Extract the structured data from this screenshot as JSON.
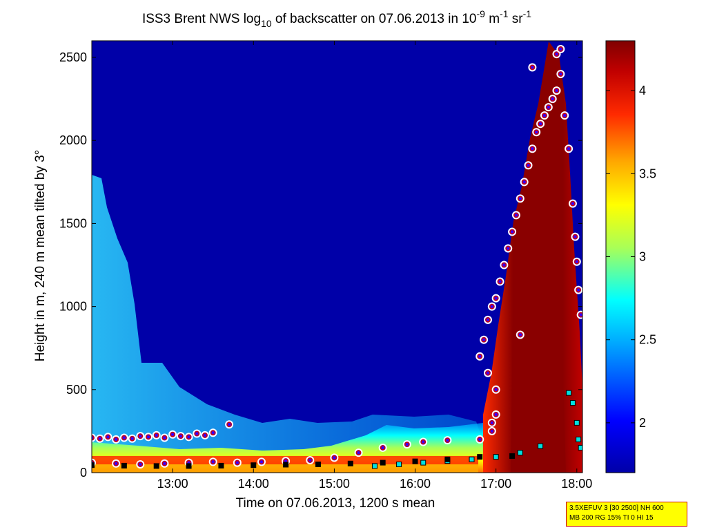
{
  "chart_data": {
    "type": "heatmap",
    "title_parts": {
      "prefix": "ISS3 Brent NWS log",
      "sub": "10",
      "middle": " of backscatter on 07.06.2013 in 10",
      "sup1": "-9",
      "unit1": " m",
      "sup2": "-1",
      "unit2": " sr",
      "sup3": "-1"
    },
    "xlabel": "Time on 07.06.2013, 1200 s mean",
    "ylabel": "Height in m, 240 m mean tilted by 3°",
    "xlim": [
      12.0,
      18.07
    ],
    "ylim": [
      0,
      2600
    ],
    "x_ticks": [
      {
        "v": 13,
        "label": "13:00"
      },
      {
        "v": 14,
        "label": "14:00"
      },
      {
        "v": 15,
        "label": "15:00"
      },
      {
        "v": 16,
        "label": "16:00"
      },
      {
        "v": 17,
        "label": "17:00"
      },
      {
        "v": 18,
        "label": "18:00"
      }
    ],
    "y_ticks": [
      {
        "v": 0,
        "label": "0"
      },
      {
        "v": 500,
        "label": "500"
      },
      {
        "v": 1000,
        "label": "1000"
      },
      {
        "v": 1500,
        "label": "1500"
      },
      {
        "v": 2000,
        "label": "2000"
      },
      {
        "v": 2500,
        "label": "2500"
      }
    ],
    "colorbar": {
      "range": [
        1.7,
        4.3
      ],
      "ticks": [
        {
          "v": 2,
          "label": "2"
        },
        {
          "v": 2.5,
          "label": "2.5"
        },
        {
          "v": 3,
          "label": "3"
        },
        {
          "v": 3.5,
          "label": "3.5"
        },
        {
          "v": 4,
          "label": "4"
        }
      ]
    },
    "series": [
      {
        "kind": "cloud-base-markers",
        "style": "red-ring-blue-fill",
        "points": [
          [
            12.0,
            210
          ],
          [
            12.1,
            205
          ],
          [
            12.2,
            215
          ],
          [
            12.3,
            200
          ],
          [
            12.4,
            210
          ],
          [
            12.5,
            205
          ],
          [
            12.6,
            220
          ],
          [
            12.7,
            215
          ],
          [
            12.8,
            225
          ],
          [
            12.9,
            210
          ],
          [
            13.0,
            230
          ],
          [
            13.1,
            220
          ],
          [
            13.2,
            215
          ],
          [
            13.3,
            235
          ],
          [
            13.4,
            225
          ],
          [
            13.5,
            240
          ],
          [
            13.7,
            290
          ],
          [
            12.0,
            60
          ],
          [
            12.3,
            55
          ],
          [
            12.6,
            50
          ],
          [
            12.9,
            55
          ],
          [
            13.2,
            60
          ],
          [
            13.5,
            65
          ],
          [
            13.8,
            60
          ],
          [
            14.1,
            65
          ],
          [
            14.4,
            70
          ],
          [
            14.7,
            75
          ],
          [
            15.0,
            90
          ],
          [
            15.3,
            120
          ],
          [
            15.6,
            150
          ],
          [
            15.9,
            170
          ],
          [
            16.1,
            185
          ],
          [
            16.4,
            195
          ],
          [
            16.8,
            200
          ],
          [
            16.95,
            250
          ],
          [
            16.95,
            300
          ],
          [
            17.0,
            350
          ],
          [
            16.8,
            700
          ],
          [
            16.85,
            800
          ],
          [
            16.9,
            920
          ],
          [
            16.95,
            1000
          ],
          [
            17.0,
            1050
          ],
          [
            17.05,
            1150
          ],
          [
            17.1,
            1250
          ],
          [
            17.15,
            1350
          ],
          [
            17.2,
            1450
          ],
          [
            17.25,
            1550
          ],
          [
            17.3,
            1650
          ],
          [
            17.35,
            1750
          ],
          [
            17.4,
            1850
          ],
          [
            17.45,
            1950
          ],
          [
            17.5,
            2050
          ],
          [
            17.55,
            2100
          ],
          [
            17.6,
            2150
          ],
          [
            17.65,
            2200
          ],
          [
            17.7,
            2250
          ],
          [
            17.75,
            2300
          ],
          [
            17.8,
            2400
          ],
          [
            17.85,
            2150
          ],
          [
            17.9,
            1950
          ],
          [
            17.95,
            1620
          ],
          [
            17.98,
            1420
          ],
          [
            18.0,
            1270
          ],
          [
            18.02,
            1100
          ],
          [
            18.05,
            950
          ],
          [
            17.45,
            2440
          ],
          [
            17.75,
            2520
          ],
          [
            17.8,
            2550
          ],
          [
            17.3,
            830
          ],
          [
            16.9,
            600
          ],
          [
            17.0,
            500
          ]
        ]
      },
      {
        "kind": "aerosol-layer-markers",
        "style": "cyan-square",
        "points": [
          [
            15.5,
            40
          ],
          [
            15.8,
            50
          ],
          [
            16.1,
            60
          ],
          [
            16.4,
            70
          ],
          [
            16.7,
            80
          ],
          [
            17.0,
            95
          ],
          [
            17.3,
            120
          ],
          [
            17.55,
            160
          ],
          [
            17.9,
            480
          ],
          [
            17.95,
            420
          ],
          [
            18.0,
            300
          ],
          [
            18.02,
            200
          ],
          [
            18.05,
            150
          ]
        ]
      },
      {
        "kind": "surface-layer-markers",
        "style": "black-square",
        "points": [
          [
            12.0,
            45
          ],
          [
            12.4,
            42
          ],
          [
            12.8,
            40
          ],
          [
            13.2,
            40
          ],
          [
            13.6,
            42
          ],
          [
            14.0,
            45
          ],
          [
            14.4,
            48
          ],
          [
            14.8,
            50
          ],
          [
            15.2,
            55
          ],
          [
            15.6,
            60
          ],
          [
            16.0,
            68
          ],
          [
            16.4,
            80
          ],
          [
            16.8,
            95
          ],
          [
            17.2,
            100
          ]
        ]
      }
    ]
  },
  "info_box": {
    "line1": "3.5XEFUV 3 [30 2500] NH 600",
    "line2": "MB 200 RG 15% TI 0 HI 15"
  }
}
